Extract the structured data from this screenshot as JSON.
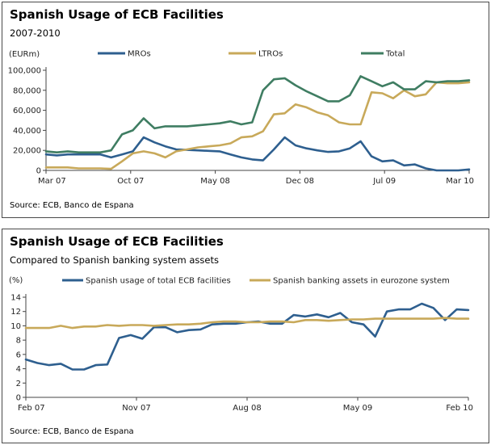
{
  "chart_data": [
    {
      "type": "line",
      "title": "Spanish Usage of ECB Facilities",
      "subtitle": "2007-2010",
      "ylabel": "(EURm)",
      "source": "Source: ECB, Banco de Espana",
      "ylim": [
        0,
        100000
      ],
      "grid": false,
      "legend_position": "top",
      "yticks": [
        "0",
        "20,000",
        "40,000",
        "60,000",
        "80,000",
        "100,000"
      ],
      "xticks": [
        "Mar 07",
        "Oct 07",
        "May 08",
        "Dec 08",
        "Jul 09",
        "Mar 10"
      ],
      "x_start": "2007-03",
      "x_end": "2010-03",
      "series": [
        {
          "name": "MROs",
          "color": "#2e5f8f",
          "values": [
            16000,
            15000,
            16000,
            16000,
            16000,
            16000,
            13000,
            16000,
            19000,
            33000,
            28000,
            24000,
            21000,
            20500,
            20000,
            19500,
            19000,
            16000,
            13000,
            11000,
            10000,
            21000,
            33000,
            25000,
            22000,
            20000,
            18500,
            19000,
            22000,
            29000,
            14000,
            9000,
            10000,
            5000,
            6000,
            2000,
            0,
            0,
            0,
            1000
          ]
        },
        {
          "name": "LTROs",
          "color": "#c8a95a",
          "values": [
            3000,
            3000,
            3000,
            2000,
            2000,
            2000,
            1500,
            9000,
            17000,
            19000,
            17000,
            13000,
            19000,
            21000,
            23000,
            24000,
            25000,
            27000,
            33000,
            34000,
            39000,
            56000,
            57000,
            66000,
            63000,
            58000,
            55000,
            48000,
            46000,
            46000,
            78000,
            77000,
            72000,
            80000,
            74000,
            76000,
            88000,
            87000,
            87000,
            88000
          ]
        },
        {
          "name": "Total",
          "color": "#3f7d62",
          "values": [
            19000,
            18000,
            19000,
            18000,
            18000,
            18000,
            20000,
            36000,
            40000,
            52000,
            42000,
            44000,
            44000,
            44000,
            45000,
            46000,
            47000,
            49000,
            46000,
            48000,
            80000,
            91000,
            92000,
            85000,
            79000,
            74000,
            69000,
            69000,
            75000,
            94000,
            89000,
            84000,
            88000,
            81000,
            81000,
            89000,
            88000,
            89000,
            89000,
            90000
          ]
        }
      ]
    },
    {
      "type": "line",
      "title": "Spanish Usage of ECB Facilities",
      "subtitle": "Compared to Spanish banking system assets",
      "ylabel": "(%)",
      "source": "Source: ECB, Banco de Espana",
      "ylim": [
        0,
        14
      ],
      "grid": false,
      "legend_position": "top",
      "yticks": [
        "0",
        "2",
        "4",
        "6",
        "8",
        "10",
        "12",
        "14"
      ],
      "xticks": [
        "Feb 07",
        "Nov 07",
        "Aug 08",
        "May 09",
        "Feb 10"
      ],
      "x_start": "2007-02",
      "x_end": "2010-02",
      "series": [
        {
          "name": "Spanish usage of total ECB facilities",
          "color": "#2e5f8f",
          "values": [
            5.3,
            4.8,
            4.5,
            4.7,
            3.9,
            3.9,
            4.5,
            4.6,
            8.3,
            8.7,
            8.2,
            9.8,
            9.8,
            9.1,
            9.4,
            9.5,
            10.2,
            10.3,
            10.3,
            10.5,
            10.6,
            10.3,
            10.3,
            11.5,
            11.3,
            11.6,
            11.2,
            11.8,
            10.5,
            10.2,
            8.5,
            12.0,
            12.3,
            12.3,
            13.1,
            12.5,
            10.8,
            12.3,
            12.2
          ]
        },
        {
          "name": "Spanish banking assets in eurozone system",
          "color": "#c8a95a",
          "values": [
            9.7,
            9.7,
            9.7,
            10.0,
            9.7,
            9.9,
            9.9,
            10.1,
            10.0,
            10.1,
            10.1,
            10.0,
            10.1,
            10.2,
            10.2,
            10.3,
            10.5,
            10.6,
            10.6,
            10.5,
            10.5,
            10.6,
            10.6,
            10.5,
            10.8,
            10.8,
            10.7,
            10.8,
            10.9,
            10.9,
            11.0,
            11.0,
            11.0,
            11.0,
            11.0,
            11.0,
            11.1,
            11.0,
            11.0
          ]
        }
      ]
    }
  ]
}
